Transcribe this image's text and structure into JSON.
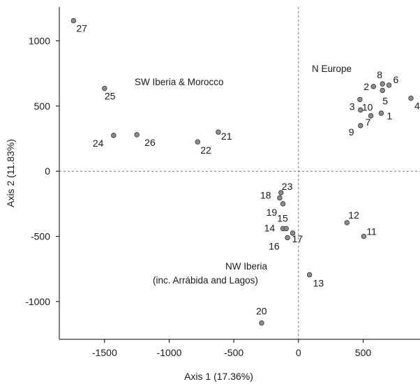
{
  "chart_data": {
    "type": "scatter",
    "xlabel": "Axis 1 (17.36%)",
    "ylabel": "Axis 2 (11.83%)",
    "xlim": [
      -1850,
      940
    ],
    "ylim": [
      -1290,
      1260
    ],
    "xticks": [
      -1500,
      -1000,
      -500,
      0,
      500
    ],
    "yticks": [
      1000,
      500,
      0,
      -500,
      -1000
    ],
    "reference_lines": {
      "x": 0,
      "y": 0,
      "style": "dashed"
    },
    "grid": false,
    "marker_color": "#8c8c8c",
    "points": [
      {
        "label": "1",
        "x": 640,
        "y": 445
      },
      {
        "label": "2",
        "x": 580,
        "y": 650
      },
      {
        "label": "3",
        "x": 480,
        "y": 470
      },
      {
        "label": "4",
        "x": 870,
        "y": 560
      },
      {
        "label": "5",
        "x": 650,
        "y": 620
      },
      {
        "label": "6",
        "x": 700,
        "y": 660
      },
      {
        "label": "7",
        "x": 560,
        "y": 425
      },
      {
        "label": "8",
        "x": 650,
        "y": 670
      },
      {
        "label": "9",
        "x": 480,
        "y": 350
      },
      {
        "label": "10",
        "x": 475,
        "y": 550
      },
      {
        "label": "11",
        "x": 505,
        "y": -500
      },
      {
        "label": "12",
        "x": 375,
        "y": -395
      },
      {
        "label": "13",
        "x": 85,
        "y": -795
      },
      {
        "label": "14",
        "x": -120,
        "y": -440
      },
      {
        "label": "15",
        "x": -95,
        "y": -440
      },
      {
        "label": "16",
        "x": -85,
        "y": -510
      },
      {
        "label": "17",
        "x": -45,
        "y": -475
      },
      {
        "label": "18",
        "x": -145,
        "y": -205
      },
      {
        "label": "19",
        "x": -120,
        "y": -250
      },
      {
        "label": "20",
        "x": -285,
        "y": -1165
      },
      {
        "label": "21",
        "x": -620,
        "y": 300
      },
      {
        "label": "22",
        "x": -780,
        "y": 225
      },
      {
        "label": "23",
        "x": -135,
        "y": -165
      },
      {
        "label": "24",
        "x": -1430,
        "y": 275
      },
      {
        "label": "25",
        "x": -1500,
        "y": 635
      },
      {
        "label": "26",
        "x": -1250,
        "y": 280
      },
      {
        "label": "27",
        "x": -1740,
        "y": 1155
      }
    ],
    "annotations": [
      {
        "text": "SW Iberia & Morocco"
      },
      {
        "text": "N Europe"
      },
      {
        "text": "NW Iberia"
      },
      {
        "text": "(inc. Arrábida and Lagos)"
      }
    ]
  }
}
